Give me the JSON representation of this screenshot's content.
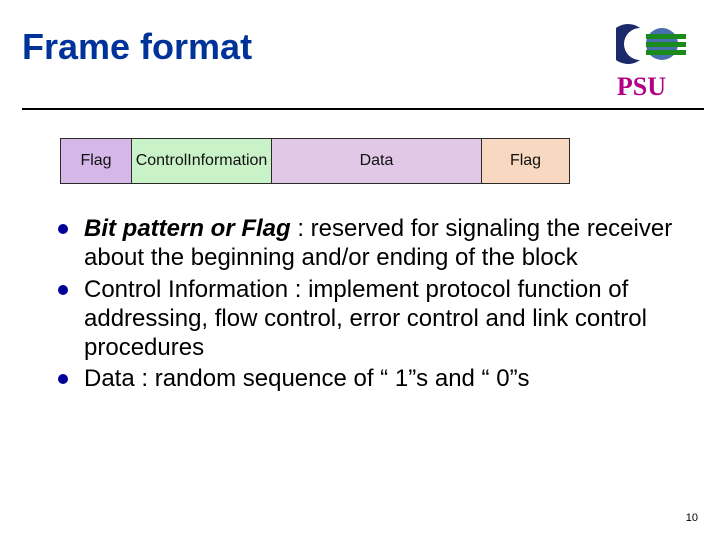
{
  "title": "Frame format",
  "psu_label": "PSU",
  "psu_color": "#b30086",
  "logo": {
    "crescent_color": "#1b2a6b",
    "globe_base": "#4a6fb0",
    "stripe_color": "#1a8a1a"
  },
  "diagram": {
    "cells": [
      {
        "label": "Flag",
        "bg": "#d6b8e8",
        "widthClass": "flag1"
      },
      {
        "label": "Control\nInformation",
        "bg": "#c9f2c9",
        "widthClass": "ctrl"
      },
      {
        "label": "Data",
        "bg": "#e0c8e6",
        "widthClass": "data"
      },
      {
        "label": "Flag",
        "bg": "#f8d8c0",
        "widthClass": "flag2"
      }
    ]
  },
  "bullets": [
    {
      "lead": "Bit pattern or Flag",
      "rest": " : reserved for signaling the receiver about the beginning and/or ending of the block"
    },
    {
      "lead": "",
      "rest": "Control Information : implement protocol function of addressing, flow control, error control and link control procedures"
    },
    {
      "lead": "",
      "rest": "Data : random sequence of “ 1”s and “ 0”s"
    }
  ],
  "page_number": "10"
}
